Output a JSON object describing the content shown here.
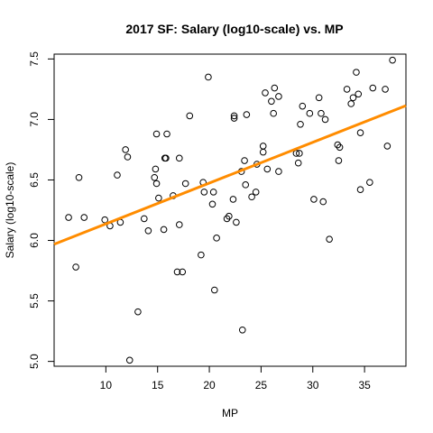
{
  "chart_data": {
    "type": "scatter",
    "title": "2017 SF: Salary (log10-scale) vs. MP",
    "xlabel": "MP",
    "ylabel": "Salary (log10-scale)",
    "xlim": [
      5.0,
      39.0
    ],
    "ylim": [
      4.96,
      7.54
    ],
    "x_ticks": [
      10,
      15,
      20,
      25,
      30,
      35
    ],
    "y_ticks": [
      5.0,
      5.5,
      6.0,
      6.5,
      7.0,
      7.5
    ],
    "x_tick_labels": [
      "10",
      "15",
      "20",
      "25",
      "30",
      "35"
    ],
    "y_tick_labels": [
      "5.0",
      "5.5",
      "6.0",
      "6.5",
      "7.0",
      "7.5"
    ],
    "grid": false,
    "points": [
      [
        6.4,
        6.19
      ],
      [
        7.1,
        5.78
      ],
      [
        7.4,
        6.52
      ],
      [
        7.9,
        6.19
      ],
      [
        9.9,
        6.17
      ],
      [
        10.4,
        6.12
      ],
      [
        11.1,
        6.54
      ],
      [
        11.4,
        6.15
      ],
      [
        11.9,
        6.75
      ],
      [
        12.1,
        6.69
      ],
      [
        12.3,
        5.01
      ],
      [
        13.1,
        5.41
      ],
      [
        13.7,
        6.18
      ],
      [
        14.1,
        6.08
      ],
      [
        14.7,
        6.52
      ],
      [
        14.8,
        6.59
      ],
      [
        14.9,
        6.88
      ],
      [
        14.9,
        6.47
      ],
      [
        15.1,
        6.35
      ],
      [
        15.6,
        6.09
      ],
      [
        15.7,
        6.68
      ],
      [
        15.8,
        6.68
      ],
      [
        15.9,
        6.88
      ],
      [
        16.5,
        6.37
      ],
      [
        16.9,
        5.74
      ],
      [
        17.1,
        6.13
      ],
      [
        17.1,
        6.68
      ],
      [
        17.4,
        5.74
      ],
      [
        17.7,
        6.47
      ],
      [
        18.1,
        7.03
      ],
      [
        19.2,
        5.88
      ],
      [
        19.4,
        6.48
      ],
      [
        19.5,
        6.4
      ],
      [
        19.9,
        7.35
      ],
      [
        20.3,
        6.3
      ],
      [
        20.4,
        6.4
      ],
      [
        20.5,
        5.59
      ],
      [
        20.7,
        6.02
      ],
      [
        21.7,
        6.18
      ],
      [
        21.9,
        6.2
      ],
      [
        22.3,
        6.34
      ],
      [
        22.4,
        7.03
      ],
      [
        22.4,
        7.01
      ],
      [
        22.6,
        6.15
      ],
      [
        23.1,
        6.57
      ],
      [
        23.2,
        5.26
      ],
      [
        23.4,
        6.66
      ],
      [
        23.6,
        7.04
      ],
      [
        23.5,
        6.46
      ],
      [
        24.1,
        6.36
      ],
      [
        24.5,
        6.4
      ],
      [
        24.6,
        6.63
      ],
      [
        25.2,
        6.73
      ],
      [
        25.2,
        6.78
      ],
      [
        25.4,
        7.22
      ],
      [
        25.6,
        6.59
      ],
      [
        26.0,
        7.15
      ],
      [
        26.2,
        7.05
      ],
      [
        26.3,
        7.26
      ],
      [
        26.7,
        7.19
      ],
      [
        26.7,
        6.57
      ],
      [
        28.4,
        6.72
      ],
      [
        28.6,
        6.64
      ],
      [
        28.7,
        6.72
      ],
      [
        28.8,
        6.96
      ],
      [
        29.0,
        7.11
      ],
      [
        29.7,
        7.05
      ],
      [
        30.1,
        6.34
      ],
      [
        30.6,
        7.18
      ],
      [
        30.8,
        7.05
      ],
      [
        31.0,
        6.32
      ],
      [
        31.2,
        7.0
      ],
      [
        31.6,
        6.01
      ],
      [
        32.4,
        6.79
      ],
      [
        32.5,
        6.66
      ],
      [
        32.6,
        6.77
      ],
      [
        33.3,
        7.25
      ],
      [
        33.7,
        7.13
      ],
      [
        33.9,
        7.18
      ],
      [
        34.2,
        7.39
      ],
      [
        34.4,
        7.21
      ],
      [
        34.6,
        6.89
      ],
      [
        34.6,
        6.42
      ],
      [
        35.5,
        6.48
      ],
      [
        35.8,
        7.26
      ],
      [
        37.0,
        7.25
      ],
      [
        37.2,
        6.78
      ],
      [
        37.7,
        7.49
      ]
    ],
    "fit_line": {
      "color": "#ff8c00",
      "intercept": 5.8,
      "slope": 0.0337
    }
  }
}
